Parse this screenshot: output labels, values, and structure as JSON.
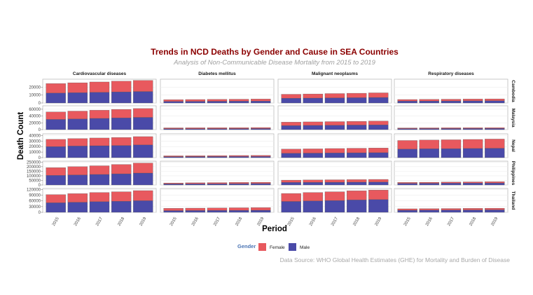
{
  "chart_data": {
    "type": "bar",
    "stacked": true,
    "title": "Trends in NCD Deaths by Gender and Cause in SEA Countries",
    "subtitle": "Analysis of Non-Communicable Disease Mortality from 2015 to 2019",
    "xlabel": "Period",
    "ylabel": "Death Count",
    "caption": "Data Source: WHO Global Health Estimates (GHE) for Mortality and Burden of Disease",
    "legend": {
      "title": "Gender",
      "position": "bottom",
      "entries": [
        "Female",
        "Male"
      ]
    },
    "colors": {
      "Female": "#e8595e",
      "Male": "#4a4aa8"
    },
    "x": [
      "2015",
      "2016",
      "2017",
      "2018",
      "2019"
    ],
    "causes": [
      "Cardiovascular diseases",
      "Diabetes mellitus",
      "Malignant neoplasms",
      "Respiratory diseases"
    ],
    "countries": [
      {
        "name": "Cambodia",
        "ticks": [
          0,
          10000,
          20000
        ],
        "ylim": [
          0,
          30000
        ],
        "cells": [
          {
            "female": [
              12000,
              12500,
              13000,
              13500,
              14000
            ],
            "male": [
              12500,
              13000,
              13500,
              14000,
              14500
            ]
          },
          {
            "female": [
              2200,
              2300,
              2400,
              2500,
              2600
            ],
            "male": [
              2000,
              2100,
              2200,
              2300,
              2400
            ]
          },
          {
            "female": [
              5000,
              5200,
              5400,
              5600,
              5800
            ],
            "male": [
              6000,
              6200,
              6500,
              6700,
              7000
            ]
          },
          {
            "female": [
              2000,
              2100,
              2200,
              2300,
              2400
            ],
            "male": [
              2400,
              2500,
              2600,
              2700,
              2800
            ]
          }
        ]
      },
      {
        "name": "Malaysia",
        "ticks": [
          0,
          20000,
          40000,
          60000
        ],
        "ylim": [
          0,
          70000
        ],
        "cells": [
          {
            "female": [
              22000,
              23000,
              24000,
              25000,
              26000
            ],
            "male": [
              30000,
              31500,
              33000,
              34500,
              36000
            ]
          },
          {
            "female": [
              2500,
              2600,
              2700,
              2800,
              2900
            ],
            "male": [
              2700,
              2800,
              2900,
              3000,
              3200
            ]
          },
          {
            "female": [
              10000,
              10300,
              10600,
              10900,
              11300
            ],
            "male": [
              12000,
              12500,
              13000,
              13500,
              14000
            ]
          },
          {
            "female": [
              2000,
              2100,
              2200,
              2300,
              2400
            ],
            "male": [
              3000,
              3100,
              3200,
              3300,
              3400
            ]
          }
        ]
      },
      {
        "name": "Nepal",
        "ticks": [
          0,
          10000,
          20000,
          30000,
          40000
        ],
        "ylim": [
          0,
          43000
        ],
        "cells": [
          {
            "female": [
              13000,
              13500,
              14000,
              14500,
              15000
            ],
            "male": [
              20000,
              21000,
              21500,
              22000,
              23000
            ]
          },
          {
            "female": [
              1500,
              1600,
              1700,
              1800,
              1900
            ],
            "male": [
              1800,
              1900,
              2000,
              2100,
              2200
            ]
          },
          {
            "female": [
              7500,
              7700,
              8000,
              8200,
              8500
            ],
            "male": [
              8000,
              8200,
              8500,
              8800,
              9000
            ]
          },
          {
            "female": [
              15500,
              15800,
              16000,
              16300,
              16600
            ],
            "male": [
              15500,
              16000,
              16300,
              16600,
              17000
            ]
          }
        ]
      },
      {
        "name": "Philippines",
        "ticks": [
          0,
          50000,
          100000,
          150000,
          200000,
          250000
        ],
        "ylim": [
          0,
          260000
        ],
        "cells": [
          {
            "female": [
              85000,
              90000,
              95000,
              102000,
              110000
            ],
            "male": [
              105000,
              110000,
              115000,
              122000,
              130000
            ]
          },
          {
            "female": [
              10000,
              11000,
              12000,
              13000,
              14000
            ],
            "male": [
              12000,
              13000,
              14000,
              15000,
              16000
            ]
          },
          {
            "female": [
              25000,
              26000,
              27000,
              28000,
              29000
            ],
            "male": [
              28000,
              29000,
              30000,
              31000,
              32000
            ]
          },
          {
            "female": [
              10000,
              11000,
              12000,
              13000,
              14000
            ],
            "male": [
              18000,
              19000,
              20000,
              21000,
              22000
            ]
          }
        ]
      },
      {
        "name": "Thailand",
        "ticks": [
          0,
          30000,
          60000,
          90000,
          120000
        ],
        "ylim": [
          0,
          125000
        ],
        "cells": [
          {
            "female": [
              43000,
              45000,
              48000,
              50000,
              53000
            ],
            "male": [
              50000,
              53000,
              56000,
              58000,
              61000
            ]
          },
          {
            "female": [
              12000,
              12500,
              13000,
              13500,
              14000
            ],
            "male": [
              9000,
              9500,
              10000,
              10500,
              11000
            ]
          },
          {
            "female": [
              42000,
              44000,
              46000,
              48000,
              50000
            ],
            "male": [
              57000,
              60000,
              62000,
              65000,
              67000
            ]
          },
          {
            "female": [
              7500,
              7800,
              8000,
              8300,
              8600
            ],
            "male": [
              11000,
              11500,
              12000,
              12500,
              13000
            ]
          }
        ]
      }
    ]
  }
}
